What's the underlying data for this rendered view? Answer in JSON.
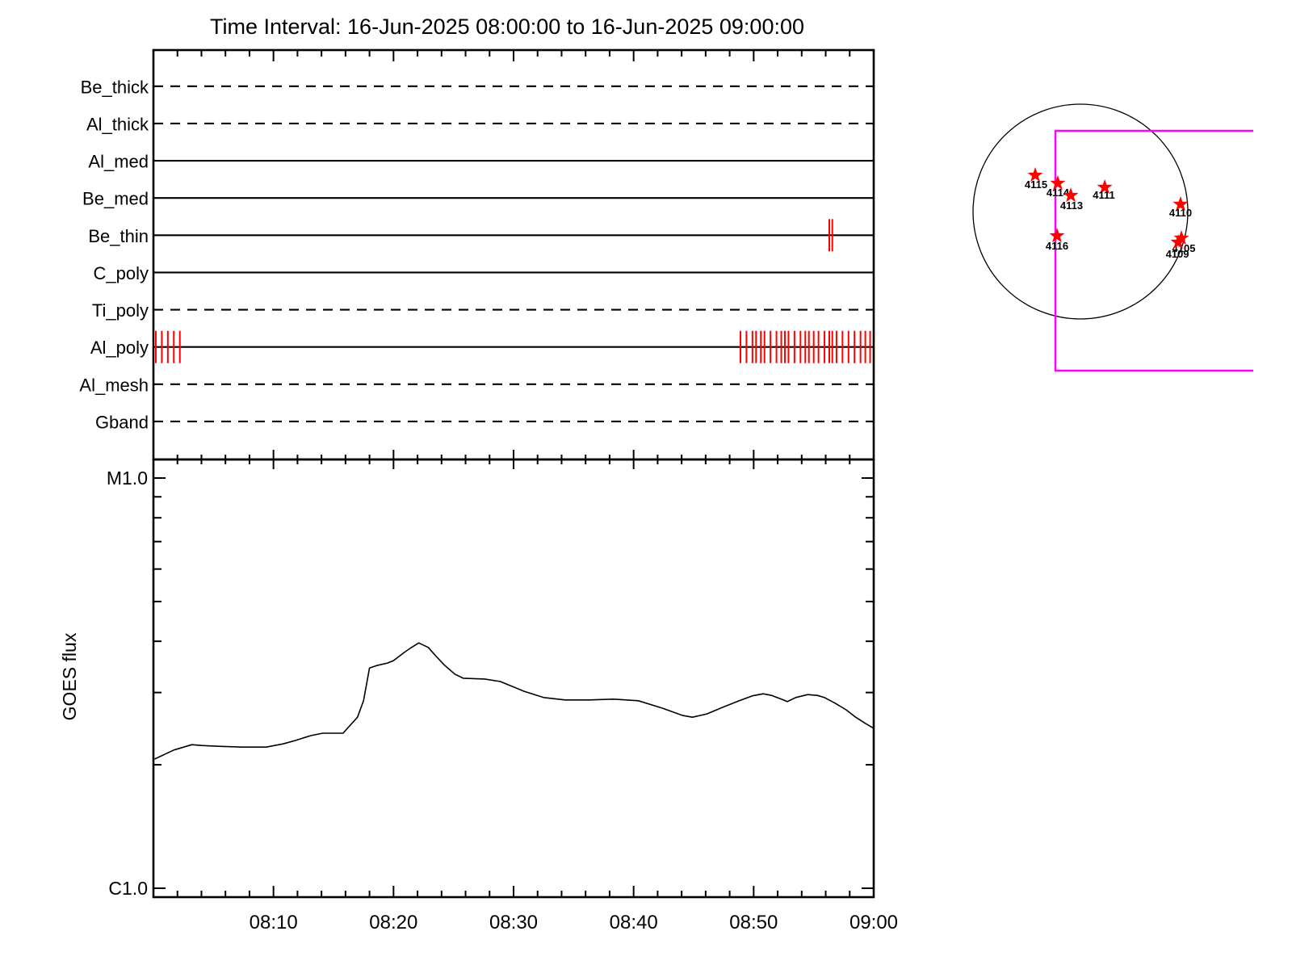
{
  "title": "Time Interval: 16-Jun-2025 08:00:00 to 16-Jun-2025 09:00:00",
  "colors": {
    "exposure_tick": "#ff0000",
    "active_region_star": "#ff0000",
    "fov_box": "#ff00ff",
    "axis": "#000000",
    "background": "#ffffff"
  },
  "chart_data": [
    {
      "type": "line",
      "panel": "filter-exposure-timeline",
      "x_minutes_range": [
        0,
        60
      ],
      "x_start_time": "08:00",
      "x_end_time": "09:00",
      "x_minor_tick_minutes": 2,
      "x_major_tick_minutes": 10,
      "filters": [
        {
          "name": "Be_thick",
          "line_style": "dashed",
          "exposure_times_min": []
        },
        {
          "name": "Al_thick",
          "line_style": "dashed",
          "exposure_times_min": []
        },
        {
          "name": "Al_med",
          "line_style": "solid",
          "exposure_times_min": []
        },
        {
          "name": "Be_med",
          "line_style": "solid",
          "exposure_times_min": []
        },
        {
          "name": "Be_thin",
          "line_style": "solid",
          "exposure_times_min": [
            56.3,
            56.55
          ]
        },
        {
          "name": "C_poly",
          "line_style": "solid",
          "exposure_times_min": []
        },
        {
          "name": "Ti_poly",
          "line_style": "dashed",
          "exposure_times_min": []
        },
        {
          "name": "Al_poly",
          "line_style": "solid",
          "exposure_times_min": [
            0.2,
            0.7,
            1.2,
            1.7,
            2.2,
            48.9,
            49.4,
            49.9,
            50.2,
            50.6,
            50.9,
            51.4,
            51.9,
            52.3,
            52.6,
            52.9,
            53.4,
            53.9,
            54.3,
            54.6,
            55.0,
            55.4,
            55.9,
            56.3,
            56.55,
            56.9,
            57.4,
            57.9,
            58.4,
            58.9,
            59.3,
            59.7
          ]
        },
        {
          "name": "Al_mesh",
          "line_style": "dashed",
          "exposure_times_min": []
        },
        {
          "name": "Gband",
          "line_style": "dashed",
          "exposure_times_min": []
        }
      ]
    },
    {
      "type": "line",
      "panel": "goes-flux",
      "ylabel": "GOES flux",
      "y_scale": "log",
      "y_top_label": "M1.0",
      "y_bottom_label": "C1.0",
      "x_tick_labels": [
        "08:10",
        "08:20",
        "08:30",
        "08:40",
        "08:50",
        "09:00"
      ],
      "x_tick_minutes": [
        10,
        20,
        30,
        40,
        50,
        60
      ],
      "series": [
        {
          "name": "GOES flux",
          "points_min_loglevel": [
            [
              0.1,
              0.315
            ],
            [
              1.7,
              0.337
            ],
            [
              3.2,
              0.35
            ],
            [
              4.0,
              0.348
            ],
            [
              5.4,
              0.346
            ],
            [
              7.4,
              0.344
            ],
            [
              9.4,
              0.344
            ],
            [
              10.8,
              0.352
            ],
            [
              11.8,
              0.36
            ],
            [
              13.1,
              0.372
            ],
            [
              14.1,
              0.378
            ],
            [
              15.8,
              0.378
            ],
            [
              16.1,
              0.388
            ],
            [
              17.0,
              0.417
            ],
            [
              17.5,
              0.457
            ],
            [
              18.0,
              0.537
            ],
            [
              18.6,
              0.543
            ],
            [
              19.5,
              0.549
            ],
            [
              20.0,
              0.555
            ],
            [
              20.9,
              0.575
            ],
            [
              21.5,
              0.587
            ],
            [
              22.1,
              0.598
            ],
            [
              22.9,
              0.587
            ],
            [
              23.5,
              0.567
            ],
            [
              24.2,
              0.545
            ],
            [
              25.1,
              0.522
            ],
            [
              25.8,
              0.512
            ],
            [
              27.6,
              0.51
            ],
            [
              28.9,
              0.504
            ],
            [
              30.9,
              0.48
            ],
            [
              32.5,
              0.465
            ],
            [
              34.3,
              0.459
            ],
            [
              36.3,
              0.459
            ],
            [
              38.3,
              0.461
            ],
            [
              40.4,
              0.457
            ],
            [
              42.4,
              0.439
            ],
            [
              44.1,
              0.421
            ],
            [
              44.9,
              0.417
            ],
            [
              46.1,
              0.425
            ],
            [
              47.4,
              0.441
            ],
            [
              48.8,
              0.457
            ],
            [
              49.9,
              0.469
            ],
            [
              50.8,
              0.474
            ],
            [
              51.5,
              0.47
            ],
            [
              52.3,
              0.461
            ],
            [
              52.8,
              0.455
            ],
            [
              53.5,
              0.465
            ],
            [
              54.5,
              0.472
            ],
            [
              55.3,
              0.47
            ],
            [
              55.9,
              0.465
            ],
            [
              56.8,
              0.451
            ],
            [
              57.7,
              0.435
            ],
            [
              58.5,
              0.417
            ],
            [
              59.3,
              0.402
            ],
            [
              60.0,
              0.39
            ]
          ]
        }
      ]
    },
    {
      "type": "scatter",
      "panel": "solar-disk-map",
      "active_regions": [
        {
          "label": "4115",
          "x_rsun": -0.421,
          "y_rsun": -0.338,
          "label_offset": [
            1,
            16
          ]
        },
        {
          "label": "4114",
          "x_rsun": -0.211,
          "y_rsun": -0.263,
          "label_offset": [
            0,
            16
          ]
        },
        {
          "label": "4113",
          "x_rsun": -0.09,
          "y_rsun": -0.15,
          "label_offset": [
            1,
            17
          ]
        },
        {
          "label": "4111",
          "x_rsun": 0.226,
          "y_rsun": -0.226,
          "label_offset": [
            -1,
            14
          ]
        },
        {
          "label": "4110",
          "x_rsun": 0.932,
          "y_rsun": -0.068,
          "label_offset": [
            0,
            15
          ]
        },
        {
          "label": "4116",
          "x_rsun": -0.218,
          "y_rsun": 0.226,
          "label_offset": [
            0,
            17
          ]
        },
        {
          "label": "4105",
          "x_rsun": 0.94,
          "y_rsun": 0.248,
          "label_offset": [
            3,
            17
          ]
        },
        {
          "label": "4109",
          "x_rsun": 0.91,
          "y_rsun": 0.286,
          "label_offset": [
            -1,
            19
          ]
        }
      ],
      "fov_box_rsun": {
        "left": -0.233,
        "top": -0.752,
        "bottom": 1.481,
        "right": 1.609,
        "right_edge_drawn": false
      }
    }
  ]
}
